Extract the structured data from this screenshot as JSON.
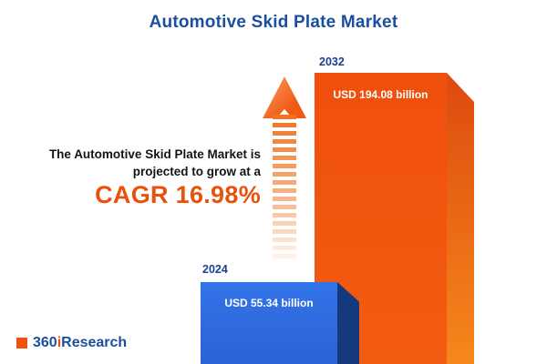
{
  "title": "Automotive Skid Plate Market",
  "annotation": {
    "line1": "The Automotive Skid Plate Market is",
    "line2": "projected to grow at a",
    "cagr": "CAGR 16.98%"
  },
  "logo": {
    "num": "360",
    "i": "i",
    "rest": "Research"
  },
  "chart_data": {
    "type": "bar",
    "title": "Automotive Skid Plate Market",
    "categories": [
      "2024",
      "2032"
    ],
    "values": [
      55.34,
      194.08
    ],
    "unit": "USD billion",
    "value_labels": [
      "USD 55.34 billion",
      "USD 194.08 billion"
    ],
    "cagr_percent": 16.98,
    "legend": "none",
    "grid": false,
    "colors": {
      "bar_2024": "#2f6be0",
      "bar_2024_side": "#16397d",
      "bar_2032": "#f05310",
      "bar_2032_side": "#e04a0c",
      "accent_orange": "#e8520a",
      "accent_blue": "#1a4fa0"
    }
  }
}
